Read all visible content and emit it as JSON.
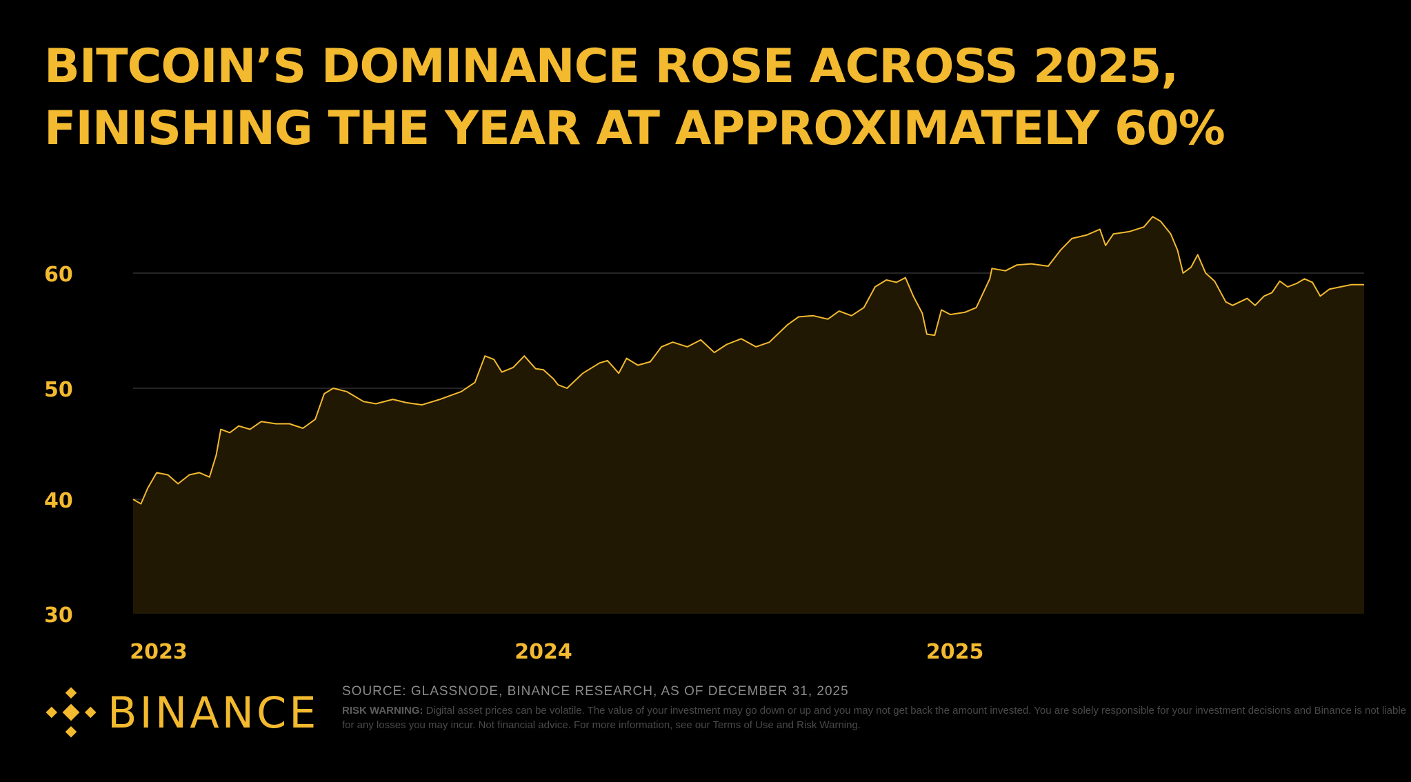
{
  "title": {
    "line1": "BITCOIN’S DOMINANCE ROSE ACROSS 2025,",
    "line2": "FINISHING THE YEAR AT APPROXIMATELY 60%"
  },
  "colors": {
    "accent": "#F3BA2F",
    "background": "#000000",
    "grid": "#333333"
  },
  "chart_data": {
    "type": "area",
    "title": "BITCOIN’S DOMINANCE ROSE ACROSS 2025, FINISHING THE YEAR AT APPROXIMATELY 60%",
    "xlabel": "",
    "ylabel": "",
    "ylim": [
      30,
      60
    ],
    "xlim": [
      "2023-01-01",
      "2025-12-31"
    ],
    "yticks": [
      {
        "value": 60,
        "label": "60"
      },
      {
        "value": 50,
        "label": "50"
      },
      {
        "value": 40,
        "label": "40"
      },
      {
        "value": 30,
        "label": "30"
      }
    ],
    "xticks": [
      {
        "date": "2023-01-01",
        "label": "2023"
      },
      {
        "date": "2024-01-01",
        "label": "2024"
      },
      {
        "date": "2025-01-01",
        "label": "2025"
      }
    ],
    "grid": true,
    "legend": "none",
    "series": [
      {
        "color": "#F3BA2F",
        "points": [
          [
            "2023-01-01",
            40.0
          ],
          [
            "2023-01-08",
            39.6
          ],
          [
            "2023-01-14",
            41.0
          ],
          [
            "2023-01-22",
            42.4
          ],
          [
            "2023-02-01",
            42.2
          ],
          [
            "2023-02-10",
            41.4
          ],
          [
            "2023-02-20",
            42.2
          ],
          [
            "2023-03-01",
            42.4
          ],
          [
            "2023-03-10",
            42.0
          ],
          [
            "2023-03-16",
            44.0
          ],
          [
            "2023-03-20",
            46.3
          ],
          [
            "2023-03-28",
            46.0
          ],
          [
            "2023-04-05",
            46.6
          ],
          [
            "2023-04-15",
            46.3
          ],
          [
            "2023-04-25",
            47.0
          ],
          [
            "2023-05-08",
            46.8
          ],
          [
            "2023-05-20",
            46.8
          ],
          [
            "2023-06-01",
            46.4
          ],
          [
            "2023-06-12",
            47.2
          ],
          [
            "2023-06-20",
            49.5
          ],
          [
            "2023-06-28",
            50.0
          ],
          [
            "2023-07-10",
            49.7
          ],
          [
            "2023-07-25",
            48.8
          ],
          [
            "2023-08-05",
            48.6
          ],
          [
            "2023-08-20",
            49.0
          ],
          [
            "2023-09-01",
            48.7
          ],
          [
            "2023-09-15",
            48.5
          ],
          [
            "2023-10-01",
            49.0
          ],
          [
            "2023-10-20",
            49.7
          ],
          [
            "2023-11-01",
            50.5
          ],
          [
            "2023-11-10",
            52.8
          ],
          [
            "2023-11-18",
            52.5
          ],
          [
            "2023-11-25",
            51.4
          ],
          [
            "2023-12-05",
            51.8
          ],
          [
            "2023-12-15",
            52.8
          ],
          [
            "2023-12-25",
            51.7
          ],
          [
            "2024-01-01",
            51.6
          ],
          [
            "2024-01-10",
            50.8
          ],
          [
            "2024-01-14",
            50.3
          ],
          [
            "2024-01-22",
            50.0
          ],
          [
            "2024-02-05",
            51.3
          ],
          [
            "2024-02-20",
            52.2
          ],
          [
            "2024-02-27",
            52.4
          ],
          [
            "2024-03-08",
            51.3
          ],
          [
            "2024-03-15",
            52.6
          ],
          [
            "2024-03-25",
            52.0
          ],
          [
            "2024-04-05",
            52.3
          ],
          [
            "2024-04-15",
            53.6
          ],
          [
            "2024-04-25",
            54.0
          ],
          [
            "2024-05-08",
            53.6
          ],
          [
            "2024-05-20",
            54.2
          ],
          [
            "2024-06-01",
            53.1
          ],
          [
            "2024-06-12",
            53.8
          ],
          [
            "2024-06-25",
            54.3
          ],
          [
            "2024-07-08",
            53.6
          ],
          [
            "2024-07-20",
            54.0
          ],
          [
            "2024-08-05",
            55.5
          ],
          [
            "2024-08-15",
            56.2
          ],
          [
            "2024-08-28",
            56.3
          ],
          [
            "2024-09-10",
            56.0
          ],
          [
            "2024-09-20",
            56.7
          ],
          [
            "2024-10-01",
            56.3
          ],
          [
            "2024-10-12",
            57.0
          ],
          [
            "2024-10-22",
            58.8
          ],
          [
            "2024-11-01",
            59.4
          ],
          [
            "2024-11-10",
            59.2
          ],
          [
            "2024-11-18",
            59.6
          ],
          [
            "2024-11-25",
            58.0
          ],
          [
            "2024-12-03",
            56.5
          ],
          [
            "2024-12-07",
            54.7
          ],
          [
            "2024-12-14",
            54.6
          ],
          [
            "2024-12-20",
            56.8
          ],
          [
            "2024-12-28",
            56.4
          ],
          [
            "2025-01-10",
            56.6
          ],
          [
            "2025-01-20",
            57.0
          ],
          [
            "2025-02-01",
            59.5
          ],
          [
            "2025-02-03",
            60.4
          ],
          [
            "2025-02-15",
            60.2
          ],
          [
            "2025-02-25",
            60.7
          ],
          [
            "2025-03-10",
            60.8
          ],
          [
            "2025-03-25",
            60.6
          ],
          [
            "2025-04-05",
            62.0
          ],
          [
            "2025-04-15",
            63.0
          ],
          [
            "2025-04-28",
            63.3
          ],
          [
            "2025-05-10",
            63.8
          ],
          [
            "2025-05-15",
            62.4
          ],
          [
            "2025-05-22",
            63.4
          ],
          [
            "2025-06-05",
            63.6
          ],
          [
            "2025-06-18",
            64.0
          ],
          [
            "2025-06-26",
            64.9
          ],
          [
            "2025-07-03",
            64.5
          ],
          [
            "2025-07-12",
            63.4
          ],
          [
            "2025-07-18",
            62.0
          ],
          [
            "2025-07-23",
            60.0
          ],
          [
            "2025-07-30",
            60.5
          ],
          [
            "2025-08-05",
            61.6
          ],
          [
            "2025-08-12",
            60.0
          ],
          [
            "2025-08-20",
            59.3
          ],
          [
            "2025-08-30",
            57.5
          ],
          [
            "2025-09-05",
            57.2
          ],
          [
            "2025-09-18",
            57.8
          ],
          [
            "2025-09-25",
            57.2
          ],
          [
            "2025-10-03",
            58.0
          ],
          [
            "2025-10-10",
            58.3
          ],
          [
            "2025-10-17",
            59.3
          ],
          [
            "2025-10-24",
            58.8
          ],
          [
            "2025-11-01",
            59.1
          ],
          [
            "2025-11-08",
            59.5
          ],
          [
            "2025-11-15",
            59.2
          ],
          [
            "2025-11-22",
            58.0
          ],
          [
            "2025-11-30",
            58.6
          ],
          [
            "2025-12-10",
            58.8
          ],
          [
            "2025-12-20",
            59.0
          ],
          [
            "2025-12-31",
            59.0
          ]
        ]
      }
    ]
  },
  "footer": {
    "logo_icon": "binance-diamond-icon",
    "logo_text": "BINANCE",
    "source": "SOURCE: GLASSNODE, BINANCE RESEARCH, AS OF DECEMBER 31, 2025",
    "risk_label": "RISK WARNING:",
    "risk_text": " Digital asset prices can be volatile. The value of your investment may go down or up and you may not get back the amount invested. You are solely responsible for your investment decisions and Binance is not liable for any losses you may incur. Not financial advice. For more information, see our Terms of Use and Risk Warning."
  }
}
